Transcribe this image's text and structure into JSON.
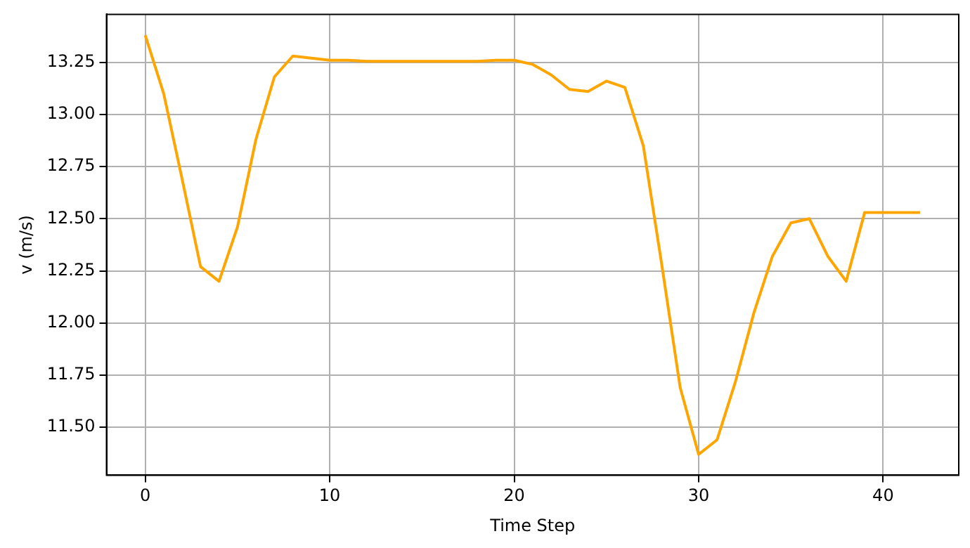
{
  "chart_data": {
    "type": "line",
    "xlabel": "Time Step",
    "ylabel": "v (m/s)",
    "x": [
      0,
      1,
      2,
      3,
      4,
      5,
      6,
      7,
      8,
      9,
      10,
      11,
      12,
      13,
      14,
      15,
      16,
      17,
      18,
      19,
      20,
      21,
      22,
      23,
      24,
      25,
      26,
      27,
      28,
      29,
      30,
      31,
      32,
      33,
      34,
      35,
      36,
      37,
      38,
      39,
      40,
      41,
      42
    ],
    "series": [
      {
        "color": "#ffa500",
        "values": [
          13.38,
          13.1,
          12.69,
          12.27,
          12.2,
          12.46,
          12.88,
          13.18,
          13.28,
          13.27,
          13.26,
          13.26,
          13.255,
          13.255,
          13.255,
          13.255,
          13.255,
          13.255,
          13.255,
          13.26,
          13.26,
          13.24,
          13.19,
          13.12,
          13.11,
          13.16,
          13.13,
          12.85,
          12.28,
          11.69,
          11.37,
          11.44,
          11.72,
          12.05,
          12.32,
          12.48,
          12.5,
          12.32,
          12.2,
          12.53,
          12.53,
          12.53,
          12.53
        ]
      }
    ],
    "xlim": [
      -2.1,
      44.1
    ],
    "xticks": [
      0,
      10,
      20,
      30,
      40
    ],
    "ylim": [
      11.27,
      13.48
    ],
    "yticks": [
      {
        "value": 11.5,
        "label": "11.50"
      },
      {
        "value": 11.75,
        "label": "11.75"
      },
      {
        "value": 12,
        "label": "12.00"
      },
      {
        "value": 12.25,
        "label": "12.25"
      },
      {
        "value": 12.5,
        "label": "12.50"
      },
      {
        "value": 12.75,
        "label": "12.75"
      },
      {
        "value": 13,
        "label": "13.00"
      },
      {
        "value": 13.25,
        "label": "13.25"
      }
    ],
    "grid": true,
    "legend": false,
    "marker": "none",
    "line_style": "solid"
  }
}
